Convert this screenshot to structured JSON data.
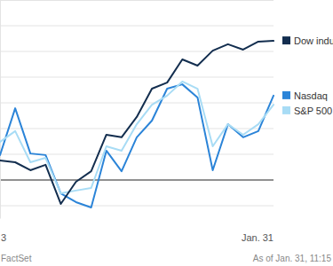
{
  "chart_data": {
    "type": "line",
    "categories": [
      "3",
      null,
      null,
      null,
      null,
      null,
      null,
      null,
      null,
      null,
      null,
      null,
      null,
      null,
      null,
      null,
      null,
      null,
      "Jan. 31"
    ],
    "series": [
      {
        "name": "Dow indu",
        "color": "#132e4f",
        "values": [
          0.76,
          0.69,
          0.38,
          0.59,
          -0.93,
          -0.07,
          0.34,
          1.76,
          1.66,
          2.45,
          3.55,
          3.79,
          4.69,
          4.45,
          5.03,
          5.28,
          5.07,
          5.38,
          5.41
        ]
      },
      {
        "name": "S&P 500",
        "color": "#a8dcf5",
        "values": [
          1.48,
          1.9,
          0.69,
          0.86,
          -0.52,
          -0.41,
          -0.31,
          1.31,
          1.14,
          2.17,
          2.93,
          3.28,
          3.83,
          3.55,
          1.31,
          2.17,
          1.76,
          2.17,
          2.93
        ]
      },
      {
        "name": "Nasdaq",
        "color": "#2b84d8",
        "values": [
          0.97,
          2.79,
          1.03,
          0.97,
          -0.52,
          -0.86,
          -1.07,
          1.14,
          0.34,
          1.66,
          2.31,
          3.55,
          3.72,
          3.21,
          0.38,
          2.17,
          1.66,
          1.9,
          3.28
        ]
      }
    ],
    "ylim": [
      -1.5,
      7
    ],
    "yticks": [
      -1,
      0,
      1,
      2,
      3,
      4,
      5,
      6,
      7
    ],
    "grid": true,
    "legend": "right",
    "tick_labels": "x",
    "annotations": [
      "FactSet",
      "As of Jan. 31, 11:15"
    ]
  }
}
